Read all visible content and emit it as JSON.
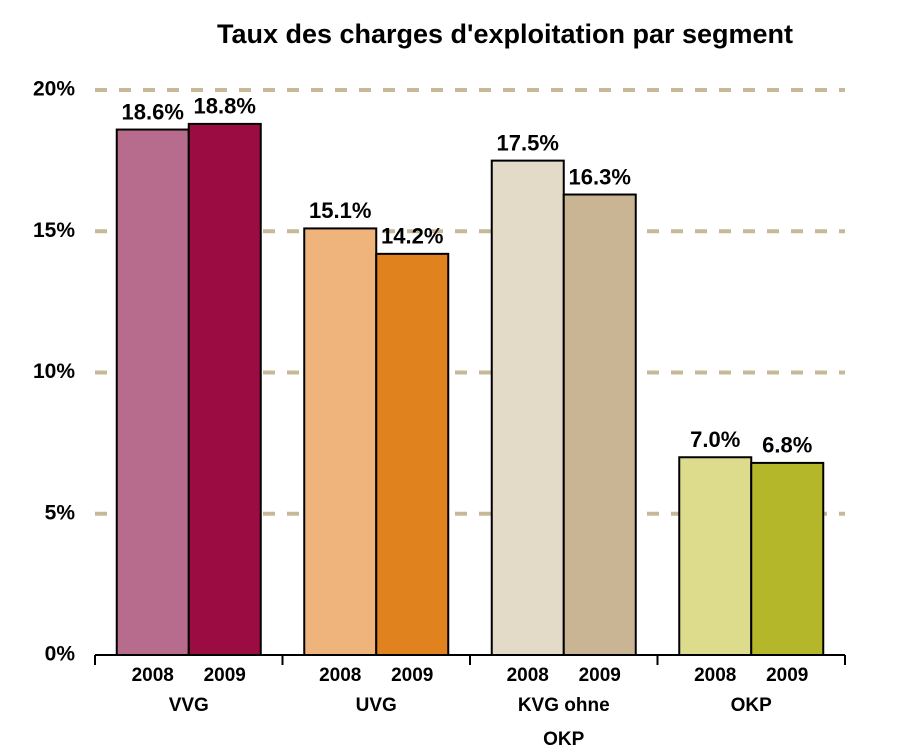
{
  "chart_data": {
    "type": "bar",
    "title": "Taux des charges d'exploitation par segment",
    "categories": [
      "VVG",
      "UVG",
      "KVG ohne OKP",
      "OKP"
    ],
    "series": [
      {
        "name": "2008",
        "colors": [
          "#b76c8e",
          "#eeb47c",
          "#e4dac8",
          "#dcdc8c"
        ],
        "values": [
          18.6,
          15.1,
          17.5,
          7.0
        ],
        "value_labels": [
          "18.6%",
          "15.1%",
          "17.5%",
          "7.0%"
        ]
      },
      {
        "name": "2009",
        "colors": [
          "#9b0c42",
          "#e0821e",
          "#c9b594",
          "#b5b72a"
        ],
        "values": [
          18.8,
          14.2,
          16.3,
          6.8
        ],
        "value_labels": [
          "18.8%",
          "14.2%",
          "16.3%",
          "6.8%"
        ]
      }
    ],
    "ylim": [
      0,
      20
    ],
    "yticks": [
      {
        "value": 0,
        "label": "0%"
      },
      {
        "value": 5,
        "label": "5%"
      },
      {
        "value": 10,
        "label": "10%"
      },
      {
        "value": 15,
        "label": "15%"
      },
      {
        "value": 20,
        "label": "20%"
      }
    ],
    "grid": true,
    "grid_color": "#c8b89a"
  }
}
